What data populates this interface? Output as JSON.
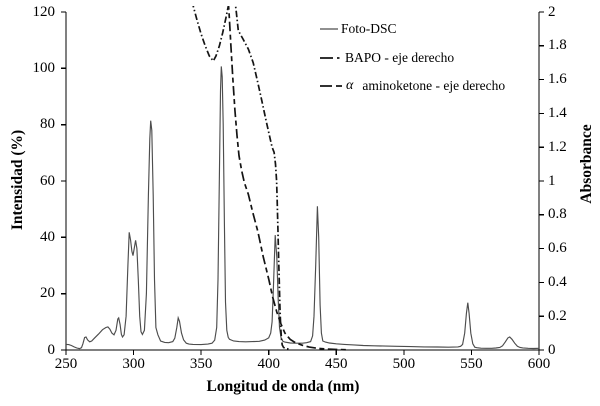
{
  "chart_data": {
    "type": "line",
    "title": "",
    "xlabel": "Longitud de onda (nm)",
    "ylabel_left": "Intensidad (%)",
    "ylabel_right": "Absorbance",
    "x_range": [
      250,
      600
    ],
    "x_ticks": [
      250,
      300,
      350,
      400,
      450,
      500,
      550,
      600
    ],
    "y_left_range": [
      0,
      120
    ],
    "y_left_ticks": [
      0,
      20,
      40,
      60,
      80,
      100,
      120
    ],
    "y_right_range": [
      0,
      2
    ],
    "y_right_ticks": [
      "0",
      "0.2",
      "0.4",
      "0.6",
      "0.8",
      "1",
      "1.2",
      "1.4",
      "1.6",
      "1.8",
      "2"
    ],
    "grid": false,
    "legend_position": "top-center",
    "colors": {
      "axis": "#000000",
      "emission_line": "#4d4d4d",
      "absorbance_lines": "#141414"
    },
    "legend": [
      {
        "label": "Foto-DSC",
        "style": "solid",
        "axis": "left"
      },
      {
        "label": "BAPO - eje derecho",
        "style": "dashdot",
        "axis": "right"
      },
      {
        "prefix": "α",
        "label": "aminoketone - eje derecho",
        "style": "dash",
        "axis": "right"
      }
    ],
    "series": [
      {
        "name": "Foto-DSC",
        "axis": "left",
        "style": "solid",
        "key": "foto-dsc-curve",
        "points": [
          [
            250,
            2
          ],
          [
            252,
            1.9
          ],
          [
            254,
            1.6
          ],
          [
            256,
            1.1
          ],
          [
            258,
            0.7
          ],
          [
            260,
            0.5
          ],
          [
            261.5,
            0.8
          ],
          [
            262.5,
            2.2
          ],
          [
            263.8,
            4.4
          ],
          [
            264.8,
            4.6
          ],
          [
            266,
            3.6
          ],
          [
            267.5,
            2.9
          ],
          [
            269,
            3.2
          ],
          [
            271,
            4.2
          ],
          [
            274,
            5.6
          ],
          [
            277,
            7.2
          ],
          [
            279.5,
            8
          ],
          [
            281,
            8.2
          ],
          [
            282.5,
            7.4
          ],
          [
            284,
            6
          ],
          [
            285.5,
            5.4
          ],
          [
            287,
            7
          ],
          [
            288.3,
            11
          ],
          [
            289,
            11.4
          ],
          [
            290,
            9
          ],
          [
            291,
            5.5
          ],
          [
            291.8,
            4.6
          ],
          [
            293,
            5.4
          ],
          [
            294.5,
            12
          ],
          [
            295.8,
            30
          ],
          [
            296.8,
            41.8
          ],
          [
            297.8,
            39
          ],
          [
            298.8,
            35
          ],
          [
            299.6,
            33.5
          ],
          [
            300.5,
            36
          ],
          [
            301.5,
            38.9
          ],
          [
            302.5,
            36
          ],
          [
            303.5,
            25
          ],
          [
            304.5,
            12
          ],
          [
            305.5,
            6.5
          ],
          [
            306.5,
            5.5
          ],
          [
            308,
            7
          ],
          [
            309.5,
            20
          ],
          [
            311,
            55
          ],
          [
            312,
            75
          ],
          [
            312.7,
            81.4
          ],
          [
            313.5,
            78
          ],
          [
            314.5,
            55
          ],
          [
            315.5,
            25
          ],
          [
            316.5,
            8
          ],
          [
            318,
            5.4
          ],
          [
            320,
            3.2
          ],
          [
            323,
            2.7
          ],
          [
            326,
            2.6
          ],
          [
            329,
            3
          ],
          [
            330.5,
            4.2
          ],
          [
            332,
            8
          ],
          [
            333,
            11.4
          ],
          [
            334,
            10.2
          ],
          [
            335.5,
            6
          ],
          [
            337,
            3.6
          ],
          [
            339,
            2.4
          ],
          [
            341,
            2.1
          ],
          [
            344,
            2
          ],
          [
            350,
            1.9
          ],
          [
            355,
            2.1
          ],
          [
            358,
            2.4
          ],
          [
            360,
            3.5
          ],
          [
            361.5,
            8
          ],
          [
            362.5,
            25
          ],
          [
            363.5,
            62
          ],
          [
            364.3,
            92
          ],
          [
            364.9,
            100.7
          ],
          [
            365.6,
            97
          ],
          [
            366.3,
            80
          ],
          [
            367.2,
            45
          ],
          [
            368,
            17
          ],
          [
            369,
            7
          ],
          [
            370,
            4.5
          ],
          [
            371,
            3.8
          ],
          [
            374,
            3.2
          ],
          [
            378,
            3
          ],
          [
            383,
            2.9
          ],
          [
            388,
            3
          ],
          [
            393,
            3.1
          ],
          [
            397,
            3.5
          ],
          [
            400,
            4.3
          ],
          [
            401.5,
            6
          ],
          [
            402.5,
            10
          ],
          [
            403.5,
            22
          ],
          [
            404.8,
            40.8
          ],
          [
            406,
            33
          ],
          [
            407,
            18
          ],
          [
            408,
            8
          ],
          [
            409.2,
            4.3
          ],
          [
            410.5,
            3.1
          ],
          [
            412,
            2.8
          ],
          [
            416,
            2.5
          ],
          [
            420,
            2.4
          ],
          [
            425,
            2.4
          ],
          [
            428,
            2.6
          ],
          [
            431,
            3
          ],
          [
            432.5,
            5
          ],
          [
            433.5,
            12
          ],
          [
            434.8,
            30
          ],
          [
            436,
            51
          ],
          [
            437,
            40
          ],
          [
            438,
            16
          ],
          [
            439,
            6
          ],
          [
            440,
            3.2
          ],
          [
            442,
            2.8
          ],
          [
            445,
            2.5
          ],
          [
            450,
            2.2
          ],
          [
            456,
            2
          ],
          [
            463,
            1.8
          ],
          [
            470,
            1.6
          ],
          [
            478,
            1.5
          ],
          [
            487,
            1.4
          ],
          [
            495,
            1.3
          ],
          [
            505,
            1.2
          ],
          [
            515,
            1.1
          ],
          [
            525,
            1.05
          ],
          [
            533,
            1
          ],
          [
            540,
            1.1
          ],
          [
            542,
            1.3
          ],
          [
            543.5,
            2
          ],
          [
            545,
            6
          ],
          [
            546.3,
            13
          ],
          [
            547.3,
            16.8
          ],
          [
            548.3,
            13
          ],
          [
            549.5,
            6
          ],
          [
            551,
            2.2
          ],
          [
            552.5,
            1
          ],
          [
            554,
            0.8
          ],
          [
            557,
            0.65
          ],
          [
            561,
            0.6
          ],
          [
            565,
            0.6
          ],
          [
            568,
            0.7
          ],
          [
            571,
            0.9
          ],
          [
            573,
            1.5
          ],
          [
            575,
            2.8
          ],
          [
            577,
            4.3
          ],
          [
            578.3,
            4.6
          ],
          [
            580,
            3.8
          ],
          [
            582,
            2.4
          ],
          [
            584,
            1.3
          ],
          [
            586,
            0.9
          ],
          [
            588,
            0.75
          ],
          [
            592,
            0.6
          ],
          [
            596,
            0.55
          ],
          [
            600,
            0.6
          ]
        ]
      },
      {
        "name": "BAPO - eje derecho",
        "axis": "right",
        "style": "dashdot",
        "key": "bapo-curve",
        "points": [
          [
            336,
            2.6
          ],
          [
            340,
            2.3
          ],
          [
            344,
            2.04
          ],
          [
            347,
            1.95
          ],
          [
            350,
            1.87
          ],
          [
            353,
            1.8
          ],
          [
            356,
            1.74
          ],
          [
            359,
            1.71
          ],
          [
            361,
            1.74
          ],
          [
            363.5,
            1.8
          ],
          [
            366,
            1.88
          ],
          [
            368.5,
            1.97
          ],
          [
            370.5,
            2.05
          ],
          [
            372.5,
            2.12
          ],
          [
            374.5,
            2.1
          ],
          [
            376,
            2.0
          ],
          [
            377.5,
            1.89
          ],
          [
            381,
            1.84
          ],
          [
            385,
            1.78
          ],
          [
            388.5,
            1.7
          ],
          [
            392,
            1.58
          ],
          [
            395,
            1.47
          ],
          [
            398,
            1.36
          ],
          [
            400.5,
            1.27
          ],
          [
            402.5,
            1.2
          ],
          [
            404,
            1.17
          ],
          [
            405,
            1.1
          ],
          [
            405.8,
            1.0
          ],
          [
            406.3,
            0.88
          ],
          [
            406.8,
            0.72
          ],
          [
            407.3,
            0.55
          ],
          [
            407.8,
            0.4
          ],
          [
            408.3,
            0.26
          ],
          [
            408.8,
            0.15
          ],
          [
            409.4,
            0.07
          ],
          [
            410,
            0.03
          ],
          [
            411,
            0.015
          ],
          [
            413,
            0.008
          ],
          [
            416,
            0.004
          ]
        ]
      },
      {
        "name": "α aminoketone - eje derecho",
        "axis": "right",
        "style": "dash",
        "key": "aminoketone-curve",
        "points": [
          [
            367,
            2.45
          ],
          [
            368.8,
            2.2
          ],
          [
            370.6,
            2.0
          ],
          [
            372,
            1.8
          ],
          [
            373.5,
            1.6
          ],
          [
            375,
            1.42
          ],
          [
            376.5,
            1.27
          ],
          [
            378,
            1.15
          ],
          [
            380,
            1.06
          ],
          [
            382,
            0.99
          ],
          [
            385,
            0.92
          ],
          [
            388,
            0.82
          ],
          [
            392,
            0.7
          ],
          [
            396,
            0.55
          ],
          [
            400,
            0.42
          ],
          [
            403,
            0.31
          ],
          [
            406,
            0.225
          ],
          [
            409,
            0.155
          ],
          [
            412,
            0.1
          ],
          [
            416,
            0.062
          ],
          [
            420,
            0.042
          ],
          [
            425,
            0.028
          ],
          [
            430,
            0.017
          ],
          [
            436,
            0.01
          ],
          [
            442,
            0.006
          ],
          [
            450,
            0.003
          ],
          [
            458,
            0.001
          ]
        ]
      }
    ]
  }
}
